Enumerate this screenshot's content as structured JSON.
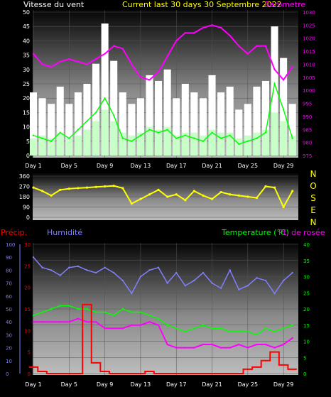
{
  "header": {
    "wind_label": "Vitesse du vent",
    "title": "Current last 30 days 30 Septembre 2022",
    "baro_label": "Barometre"
  },
  "direction_letters": [
    "N",
    "O",
    "S",
    "E",
    "N"
  ],
  "lower_labels": {
    "precip": "Précip.",
    "humidity": "Humidité",
    "temp": "Temperature (°C)",
    "dew": "Pt. de rosée"
  },
  "colors": {
    "wind_bar": "#ffffff",
    "wind_avg": "#c8ffc8",
    "gust_line": "#00ff00",
    "baro": "#ff00ff",
    "direction": "#ffff00",
    "humidity": "#8080ff",
    "temp": "#00ff00",
    "dew": "#ff00ff",
    "precip": "#ff0000",
    "title": "#ffff00",
    "label_white": "#ffffff",
    "humidity_axis": "#8080ff"
  },
  "chart_data": [
    {
      "type": "bar",
      "name": "wind_barometer",
      "x_ticks": [
        "Day 1",
        "Day 5",
        "Day 9",
        "Day 13",
        "Day 17",
        "Day 21",
        "Day 25",
        "Day 29"
      ],
      "y_left_ticks": [
        "0",
        "5",
        "10",
        "15",
        "20",
        "25",
        "30",
        "35",
        "40",
        "45",
        "50"
      ],
      "y_right_ticks": [
        "975",
        "980",
        "985",
        "990",
        "995",
        "1000",
        "1005",
        "1010",
        "1015",
        "1020",
        "1025",
        "1030"
      ],
      "ylim_left": [
        0,
        50
      ],
      "ylim_right": [
        975,
        1030
      ],
      "x": [
        1,
        2,
        3,
        4,
        5,
        6,
        7,
        8,
        9,
        10,
        11,
        12,
        13,
        14,
        15,
        16,
        17,
        18,
        19,
        20,
        21,
        22,
        23,
        24,
        25,
        26,
        27,
        28,
        29,
        30
      ],
      "series": [
        {
          "role": "wind_max",
          "values": [
            22,
            20,
            18,
            24,
            18,
            22,
            25,
            32,
            46,
            33,
            22,
            18,
            20,
            28,
            26,
            30,
            20,
            25,
            22,
            20,
            28,
            22,
            24,
            16,
            18,
            24,
            26,
            45,
            34,
            18
          ]
        },
        {
          "role": "wind_avg",
          "values": [
            6,
            7,
            6,
            8,
            6,
            7,
            9,
            12,
            16,
            12,
            8,
            7,
            8,
            10,
            9,
            10,
            7,
            8,
            8,
            7,
            9,
            8,
            8,
            6,
            7,
            8,
            9,
            15,
            12,
            7
          ]
        },
        {
          "role": "gust",
          "values": [
            7,
            6,
            5,
            8,
            6,
            9,
            12,
            15,
            20,
            14,
            6,
            5,
            7,
            9,
            8,
            9,
            6,
            7,
            6,
            5,
            8,
            6,
            7,
            4,
            5,
            6,
            8,
            25,
            16,
            6
          ]
        },
        {
          "role": "barometer",
          "values": [
            1014,
            1010,
            1009,
            1011,
            1012,
            1011,
            1010,
            1012,
            1014,
            1017,
            1016,
            1010,
            1005,
            1004,
            1007,
            1013,
            1019,
            1022,
            1022,
            1024,
            1025,
            1024,
            1021,
            1017,
            1014,
            1017,
            1017,
            1008,
            1004,
            1009
          ]
        }
      ]
    },
    {
      "type": "line",
      "name": "wind_direction",
      "y_ticks": [
        "0",
        "90",
        "180",
        "270",
        "360"
      ],
      "ylim": [
        0,
        360
      ],
      "x": [
        1,
        2,
        3,
        4,
        5,
        6,
        7,
        8,
        9,
        10,
        11,
        12,
        13,
        14,
        15,
        16,
        17,
        18,
        19,
        20,
        21,
        22,
        23,
        24,
        25,
        26,
        27,
        28,
        29,
        30
      ],
      "values": [
        260,
        230,
        190,
        240,
        250,
        255,
        260,
        265,
        270,
        275,
        255,
        120,
        160,
        200,
        240,
        180,
        200,
        150,
        230,
        190,
        160,
        220,
        200,
        190,
        180,
        170,
        270,
        260,
        90,
        230
      ]
    },
    {
      "type": "line",
      "name": "temperature_humidity_precip",
      "x_ticks": [
        "Day 1",
        "Day 5",
        "Day 9",
        "Day 13",
        "Day 17",
        "Day 21",
        "Day 25",
        "Day 29"
      ],
      "y_humidity_ticks": [
        "0",
        "10",
        "20",
        "30",
        "40",
        "50",
        "60",
        "70",
        "80",
        "90",
        "100"
      ],
      "y_precip_ticks": [
        "0",
        "5",
        "10",
        "15",
        "20",
        "25",
        "30"
      ],
      "y_temp_ticks": [
        "0",
        "5",
        "10",
        "15",
        "20",
        "25",
        "30",
        "35",
        "40"
      ],
      "ylim_humidity": [
        0,
        100
      ],
      "ylim_precip": [
        0,
        30
      ],
      "ylim_temp": [
        0,
        40
      ],
      "x": [
        1,
        2,
        3,
        4,
        5,
        6,
        7,
        8,
        9,
        10,
        11,
        12,
        13,
        14,
        15,
        16,
        17,
        18,
        19,
        20,
        21,
        22,
        23,
        24,
        25,
        26,
        27,
        28,
        29,
        30
      ],
      "series": [
        {
          "role": "humidity",
          "values": [
            90,
            82,
            80,
            76,
            82,
            83,
            80,
            78,
            82,
            78,
            72,
            62,
            75,
            80,
            82,
            70,
            78,
            68,
            72,
            78,
            70,
            66,
            80,
            65,
            68,
            74,
            72,
            62,
            72,
            78
          ]
        },
        {
          "role": "temperature",
          "values": [
            18,
            19,
            20,
            21,
            21,
            20,
            20,
            19,
            19,
            18,
            20,
            19,
            19,
            18,
            17,
            15,
            14,
            13,
            14,
            15,
            14,
            14,
            13,
            13,
            13,
            12,
            14,
            13,
            14,
            15
          ]
        },
        {
          "role": "dew_point",
          "values": [
            16,
            16,
            16,
            16,
            16,
            17,
            16,
            16,
            14,
            14,
            14,
            15,
            15,
            16,
            15,
            9,
            8,
            8,
            8,
            9,
            9,
            8,
            8,
            9,
            8,
            9,
            9,
            8,
            9,
            11
          ]
        },
        {
          "role": "precipitation",
          "values": [
            1.5,
            0.5,
            0,
            0,
            0,
            0,
            16,
            2.5,
            0.5,
            0,
            0,
            0,
            0,
            0.5,
            0,
            0,
            0,
            0,
            0,
            0,
            0,
            0,
            0,
            0,
            1,
            1.5,
            3,
            5,
            2,
            1
          ]
        }
      ]
    }
  ]
}
